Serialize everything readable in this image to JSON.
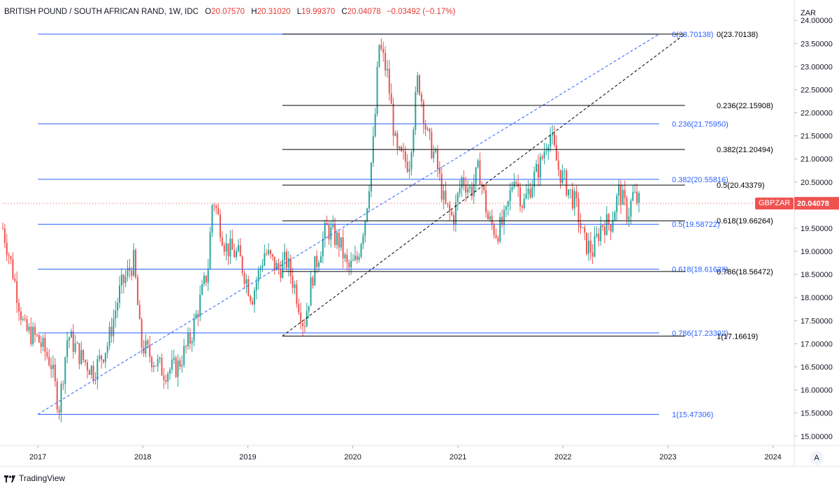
{
  "header": {
    "symbol": "BRITISH POUND / SOUTH AFRICAN RAND, 1W, IDC",
    "open_label": "O",
    "open": "20.07570",
    "high_label": "H",
    "high": "20.31020",
    "low_label": "L",
    "low": "19.99370",
    "close_label": "C",
    "close": "20.04078",
    "change": "−0.03492 (−0.17%)"
  },
  "price_axis": {
    "currency": "ZAR",
    "ticks": [
      "24.00000",
      "23.50000",
      "23.00000",
      "22.50000",
      "22.00000",
      "21.50000",
      "21.00000",
      "20.50000",
      "20.00000",
      "19.50000",
      "19.00000",
      "18.50000",
      "18.00000",
      "17.50000",
      "17.00000",
      "16.50000",
      "16.00000",
      "15.50000",
      "15.00000"
    ]
  },
  "time_axis": {
    "ticks": [
      "2017",
      "2018",
      "2019",
      "2020",
      "2021",
      "2022",
      "2023",
      "2024"
    ]
  },
  "ticker": {
    "name": "GBPZAR",
    "price": "20.04078"
  },
  "auto_button": "A",
  "footer": {
    "brand": "TradingView"
  },
  "colors": {
    "up": "#26a69a",
    "down": "#ef5350",
    "fib_blue": "#2962ff",
    "fib_black": "#000000"
  },
  "chart_data": {
    "type": "candlestick",
    "interval": "1W",
    "ylim": [
      14.8,
      24.35
    ],
    "x_range": [
      "2016-09-01",
      "2024-03-15"
    ],
    "grid": false,
    "fib_blue": {
      "start_date": "2017-01-01",
      "end_date": "2022-12-01",
      "levels": [
        {
          "ratio": "0",
          "value": 23.70138,
          "label": "0(23.70138)"
        },
        {
          "ratio": "0.236",
          "value": 21.7595,
          "label": "0.236(21.75950)"
        },
        {
          "ratio": "0.382",
          "value": 20.55816,
          "label": "0.382(20.55816)"
        },
        {
          "ratio": "0.5",
          "value": 19.58722,
          "label": "0.5(19.58722)"
        },
        {
          "ratio": "0.618",
          "value": 18.61628,
          "label": "0.618(18.61628)"
        },
        {
          "ratio": "0.786",
          "value": 17.23392,
          "label": "0.786(17.23392)"
        },
        {
          "ratio": "1",
          "value": 15.47306,
          "label": "1(15.47306)"
        }
      ],
      "trend_from": {
        "date": "2017-01-01",
        "value": 15.47306
      },
      "trend_to": {
        "date": "2022-12-01",
        "value": 23.70138
      }
    },
    "fib_black": {
      "start_date": "2019-05-01",
      "end_date": "2023-03-01",
      "levels": [
        {
          "ratio": "0",
          "value": 23.70138,
          "label": "0(23.70138)"
        },
        {
          "ratio": "0.236",
          "value": 22.15908,
          "label": "0.236(22.15908)"
        },
        {
          "ratio": "0.382",
          "value": 21.20494,
          "label": "0.382(21.20494)"
        },
        {
          "ratio": "0.5",
          "value": 20.43379,
          "label": "0.5(20.43379)"
        },
        {
          "ratio": "0.618",
          "value": 19.66264,
          "label": "0.618(19.66264)"
        },
        {
          "ratio": "0.786",
          "value": 18.56472,
          "label": "0.786(18.56472)"
        },
        {
          "ratio": "1",
          "value": 17.16619,
          "label": "1(17.16619)"
        }
      ],
      "trend_from": {
        "date": "2019-05-01",
        "value": 17.16619
      },
      "trend_to": {
        "date": "2023-03-01",
        "value": 23.70138
      }
    },
    "price_path": [
      [
        "2016-09-01",
        19.5
      ],
      [
        "2016-10-01",
        18.7
      ],
      [
        "2016-11-15",
        17.3
      ],
      [
        "2017-01-01",
        17.1
      ],
      [
        "2017-02-15",
        16.6
      ],
      [
        "2017-03-15",
        15.6
      ],
      [
        "2017-04-15",
        17.2
      ],
      [
        "2017-06-01",
        16.7
      ],
      [
        "2017-07-15",
        16.4
      ],
      [
        "2017-09-01",
        17.0
      ],
      [
        "2017-10-15",
        18.2
      ],
      [
        "2017-12-01",
        18.8
      ],
      [
        "2017-12-25",
        17.0
      ],
      [
        "2018-02-01",
        16.7
      ],
      [
        "2018-03-15",
        16.4
      ],
      [
        "2018-05-01",
        16.5
      ],
      [
        "2018-06-15",
        17.1
      ],
      [
        "2018-08-15",
        18.6
      ],
      [
        "2018-09-01",
        20.2
      ],
      [
        "2018-10-15",
        19.1
      ],
      [
        "2018-12-01",
        18.9
      ],
      [
        "2019-01-15",
        18.0
      ],
      [
        "2019-03-01",
        19.0
      ],
      [
        "2019-04-15",
        18.6
      ],
      [
        "2019-05-15",
        18.8
      ],
      [
        "2019-06-15",
        18.2
      ],
      [
        "2019-07-15",
        17.4
      ],
      [
        "2019-08-15",
        18.5
      ],
      [
        "2019-10-01",
        19.5
      ],
      [
        "2019-11-15",
        19.2
      ],
      [
        "2019-12-15",
        18.6
      ],
      [
        "2020-01-15",
        18.8
      ],
      [
        "2020-02-15",
        19.8
      ],
      [
        "2020-03-15",
        21.5
      ],
      [
        "2020-04-01",
        23.5
      ],
      [
        "2020-05-01",
        22.8
      ],
      [
        "2020-06-01",
        21.1
      ],
      [
        "2020-07-15",
        20.9
      ],
      [
        "2020-08-15",
        22.8
      ],
      [
        "2020-09-15",
        21.5
      ],
      [
        "2020-10-15",
        21.0
      ],
      [
        "2020-11-15",
        20.0
      ],
      [
        "2020-12-15",
        19.7
      ],
      [
        "2021-01-15",
        20.6
      ],
      [
        "2021-02-15",
        20.3
      ],
      [
        "2021-03-15",
        20.8
      ],
      [
        "2021-04-15",
        19.7
      ],
      [
        "2021-05-15",
        19.4
      ],
      [
        "2021-06-15",
        19.7
      ],
      [
        "2021-07-15",
        20.7
      ],
      [
        "2021-08-15",
        20.0
      ],
      [
        "2021-09-15",
        20.5
      ],
      [
        "2021-10-15",
        20.9
      ],
      [
        "2021-11-15",
        21.6
      ],
      [
        "2021-12-15",
        20.8
      ],
      [
        "2022-01-15",
        20.4
      ],
      [
        "2022-02-15",
        20.0
      ],
      [
        "2022-03-15",
        19.2
      ],
      [
        "2022-04-15",
        19.0
      ],
      [
        "2022-05-15",
        19.6
      ],
      [
        "2022-06-15",
        19.6
      ],
      [
        "2022-07-15",
        20.3
      ],
      [
        "2022-08-15",
        19.8
      ],
      [
        "2022-09-01",
        20.2
      ],
      [
        "2022-09-25",
        20.04
      ]
    ]
  }
}
